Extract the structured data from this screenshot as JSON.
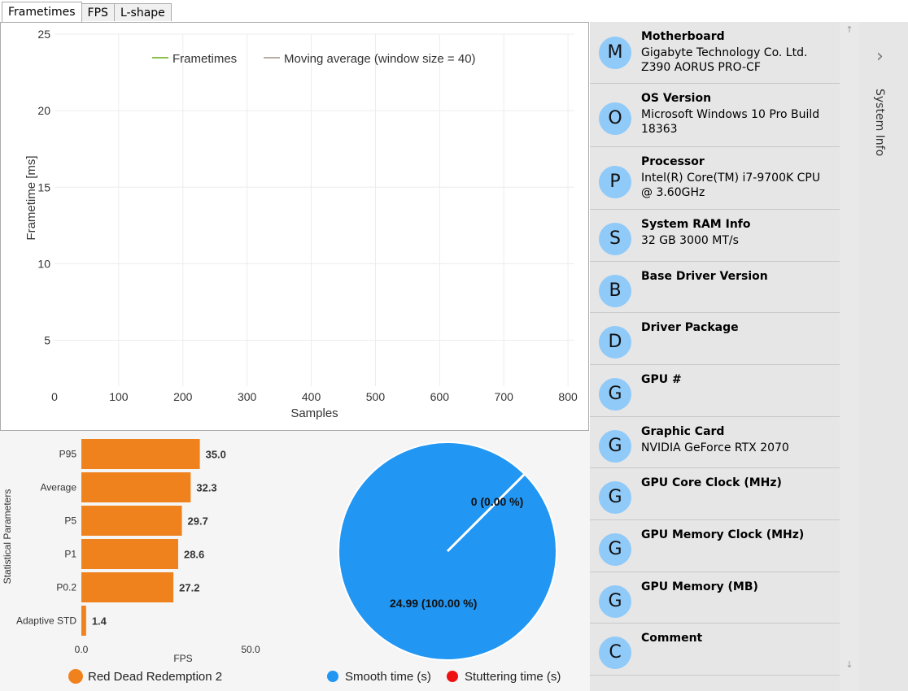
{
  "tabs": [
    "Frametimes",
    "FPS",
    "L-shape"
  ],
  "frametime_chart": {
    "type": "line",
    "xlabel": "Samples",
    "ylabel": "Frametime [ms]",
    "x_ticks": [
      0,
      100,
      200,
      300,
      400,
      500,
      600,
      700,
      800
    ],
    "y_ticks": [
      5,
      10,
      15,
      20,
      25
    ],
    "xlim": [
      0,
      810
    ],
    "ylim": [
      2,
      25
    ],
    "legend": [
      {
        "name": "Frametimes",
        "color": "#8bc34a"
      },
      {
        "name": "Moving average (window size = 40)",
        "color": "#bcaaa4"
      }
    ],
    "legend_position": "top",
    "grid": true
  },
  "chart_data": [
    {
      "type": "bar",
      "orientation": "horizontal",
      "categories": [
        "P95",
        "Average",
        "P5",
        "P1",
        "P0.2",
        "Adaptive STD"
      ],
      "series": [
        {
          "name": "Red Dead Redemption 2",
          "values": [
            35.0,
            32.3,
            29.7,
            28.6,
            27.2,
            1.4
          ],
          "color": "#f0821e"
        }
      ],
      "value_labels": [
        "35.0",
        "32.3",
        "29.7",
        "28.6",
        "27.2",
        "1.4"
      ],
      "xlabel": "FPS",
      "ylabel": "Statistical Parameters",
      "x_ticks": [
        "0.0",
        "50.0"
      ],
      "xlim": [
        0,
        50
      ],
      "legend_position": "bottom"
    },
    {
      "type": "pie",
      "slices": [
        {
          "name": "Smooth time (s)",
          "value": 24.99,
          "label": "24.99 (100.00 %)",
          "color": "#2196f3"
        },
        {
          "name": "Stuttering time (s)",
          "value": 0,
          "label": "0 (0.00 %)",
          "color": "#ee1111"
        }
      ],
      "legend_position": "bottom"
    }
  ],
  "system_info": {
    "panel_label": "System Info",
    "items": [
      {
        "letter": "M",
        "title": "Motherboard",
        "value": "Gigabyte Technology Co. Ltd. Z390 AORUS PRO-CF"
      },
      {
        "letter": "O",
        "title": "OS Version",
        "value": "Microsoft Windows 10 Pro Build 18363"
      },
      {
        "letter": "P",
        "title": "Processor",
        "value": "Intel(R) Core(TM) i7-9700K CPU @ 3.60GHz"
      },
      {
        "letter": "S",
        "title": "System RAM Info",
        "value": "32 GB 3000 MT/s"
      },
      {
        "letter": "B",
        "title": "Base Driver Version",
        "value": ""
      },
      {
        "letter": "D",
        "title": "Driver Package",
        "value": ""
      },
      {
        "letter": "G",
        "title": "GPU #",
        "value": ""
      },
      {
        "letter": "G",
        "title": "Graphic Card",
        "value": "NVIDIA GeForce RTX 2070"
      },
      {
        "letter": "G",
        "title": "GPU Core Clock (MHz)",
        "value": ""
      },
      {
        "letter": "G",
        "title": "GPU Memory Clock (MHz)",
        "value": ""
      },
      {
        "letter": "G",
        "title": "GPU Memory (MB)",
        "value": ""
      },
      {
        "letter": "C",
        "title": "Comment",
        "value": ""
      }
    ]
  },
  "icons": {
    "scroll_up": "scroll-up-arrow-icon",
    "scroll_down": "scroll-down-arrow-icon",
    "expand": "chevron-right-icon"
  },
  "colors": {
    "avatar": "#90caf9",
    "sidebar_bg": "#e6e6e6"
  }
}
